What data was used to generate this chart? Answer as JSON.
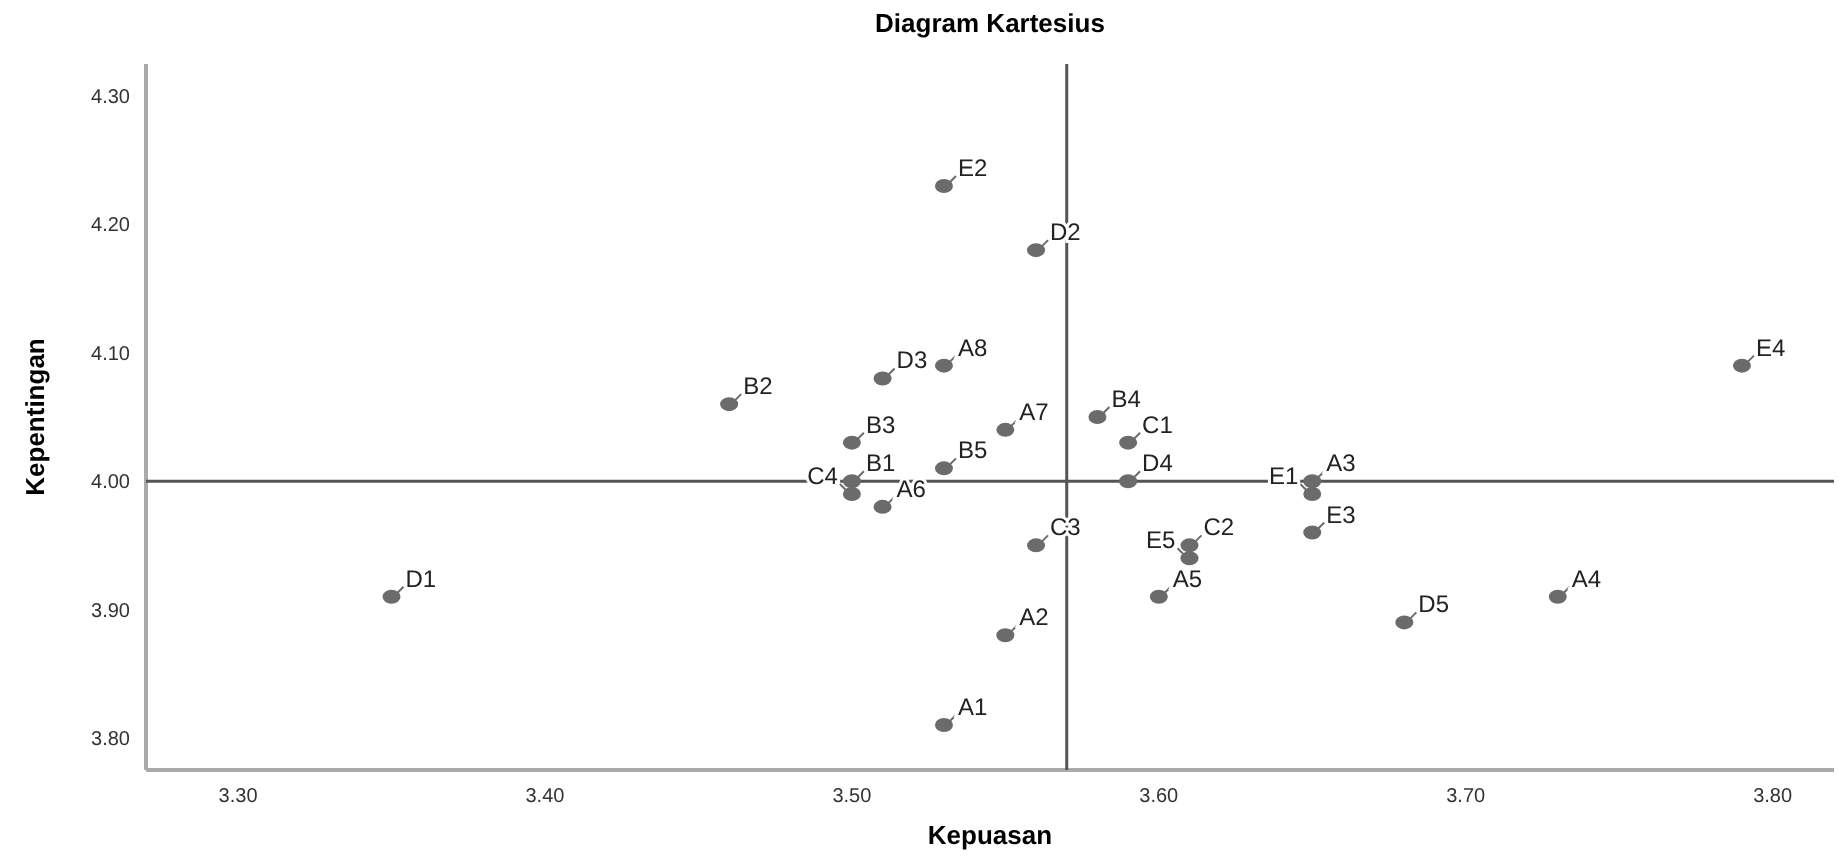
{
  "chart_data": {
    "type": "scatter",
    "title": "Diagram Kartesius",
    "xlabel": "Kepuasan",
    "ylabel": "Kepentingan",
    "xlim": [
      3.27,
      3.82
    ],
    "ylim": [
      3.775,
      4.325
    ],
    "xticks": [
      {
        "value": 3.3,
        "label": "3.30"
      },
      {
        "value": 3.4,
        "label": "3.40"
      },
      {
        "value": 3.5,
        "label": "3.50"
      },
      {
        "value": 3.6,
        "label": "3.60"
      },
      {
        "value": 3.7,
        "label": "3.70"
      },
      {
        "value": 3.8,
        "label": "3.80"
      }
    ],
    "yticks": [
      {
        "value": 3.8,
        "label": "3.80"
      },
      {
        "value": 3.9,
        "label": "3.90"
      },
      {
        "value": 4.0,
        "label": "4.00"
      },
      {
        "value": 4.1,
        "label": "4.10"
      },
      {
        "value": 4.2,
        "label": "4.20"
      },
      {
        "value": 4.3,
        "label": "4.30"
      }
    ],
    "grid": false,
    "marker": "circle",
    "series": [
      {
        "color": "#6b6b6b",
        "x": [
          3.53,
          3.56,
          3.79,
          3.51,
          3.53,
          3.46,
          3.58,
          3.55,
          3.59,
          3.5,
          3.53,
          3.5,
          3.5,
          3.51,
          3.59,
          3.65,
          3.65,
          3.65,
          3.56,
          3.61,
          3.61,
          3.6,
          3.73,
          3.68,
          3.55,
          3.53,
          3.35
        ],
        "values": [
          4.23,
          4.18,
          4.09,
          4.08,
          4.09,
          4.06,
          4.05,
          4.04,
          4.03,
          4.03,
          4.01,
          4.0,
          3.99,
          3.98,
          4.0,
          4.0,
          3.99,
          3.96,
          3.95,
          3.95,
          3.94,
          3.91,
          3.91,
          3.89,
          3.88,
          3.81,
          3.91
        ]
      }
    ],
    "annotations": [
      {
        "text": "E2",
        "x": 3.53,
        "y": 4.23
      },
      {
        "text": "D2",
        "x": 3.56,
        "y": 4.18
      },
      {
        "text": "E4",
        "x": 3.79,
        "y": 4.09
      },
      {
        "text": "D3",
        "x": 3.51,
        "y": 4.08
      },
      {
        "text": "A8",
        "x": 3.53,
        "y": 4.09
      },
      {
        "text": "B2",
        "x": 3.46,
        "y": 4.06
      },
      {
        "text": "B4",
        "x": 3.58,
        "y": 4.05
      },
      {
        "text": "A7",
        "x": 3.55,
        "y": 4.04
      },
      {
        "text": "C1",
        "x": 3.59,
        "y": 4.03
      },
      {
        "text": "B3",
        "x": 3.5,
        "y": 4.03
      },
      {
        "text": "B5",
        "x": 3.53,
        "y": 4.01
      },
      {
        "text": "B1",
        "x": 3.5,
        "y": 4.0
      },
      {
        "text": "C4",
        "x": 3.5,
        "y": 3.99
      },
      {
        "text": "A6",
        "x": 3.51,
        "y": 3.98
      },
      {
        "text": "D4",
        "x": 3.59,
        "y": 4.0
      },
      {
        "text": "A3",
        "x": 3.65,
        "y": 4.0
      },
      {
        "text": "E1",
        "x": 3.65,
        "y": 3.99
      },
      {
        "text": "E3",
        "x": 3.65,
        "y": 3.96
      },
      {
        "text": "C3",
        "x": 3.56,
        "y": 3.95
      },
      {
        "text": "C2",
        "x": 3.61,
        "y": 3.95
      },
      {
        "text": "E5",
        "x": 3.61,
        "y": 3.94
      },
      {
        "text": "A5",
        "x": 3.6,
        "y": 3.91
      },
      {
        "text": "A4",
        "x": 3.73,
        "y": 3.91
      },
      {
        "text": "D5",
        "x": 3.68,
        "y": 3.89
      },
      {
        "text": "A2",
        "x": 3.55,
        "y": 3.88
      },
      {
        "text": "A1",
        "x": 3.53,
        "y": 3.81
      },
      {
        "text": "D1",
        "x": 3.35,
        "y": 3.91
      }
    ],
    "ref_lines": [
      {
        "axis": "x",
        "value": 3.57,
        "color": "#555555"
      },
      {
        "axis": "y",
        "value": 4.0,
        "color": "#555555"
      }
    ]
  }
}
